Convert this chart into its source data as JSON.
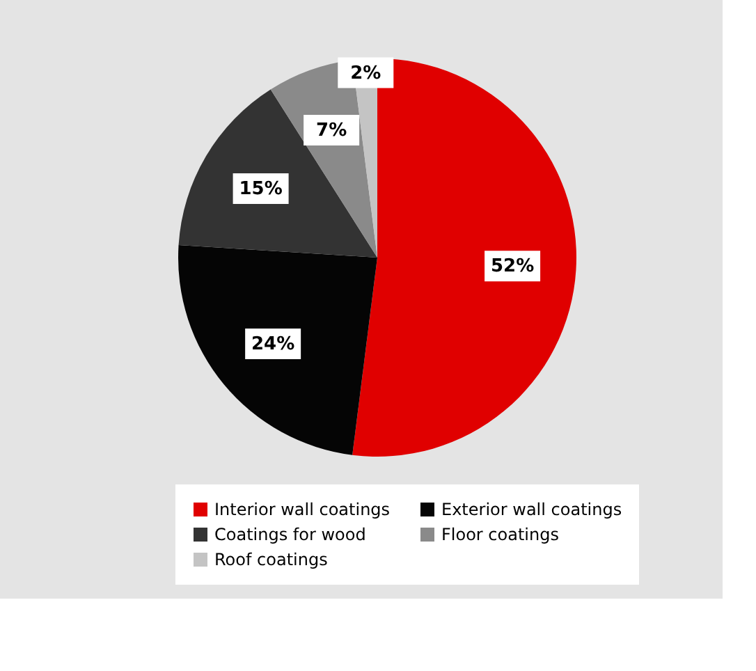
{
  "chart_data": {
    "type": "pie",
    "categories": [
      "Interior wall coatings",
      "Exterior wall coatings",
      "Coatings for wood",
      "Floor coatings",
      "Roof coatings"
    ],
    "values": [
      52,
      24,
      15,
      7,
      2
    ],
    "value_labels": [
      "52%",
      "24%",
      "15%",
      "7%",
      "2%"
    ],
    "colors": [
      "#e00000",
      "#050505",
      "#333333",
      "#8a8a8a",
      "#c4c4c4"
    ],
    "legend": "bottom"
  }
}
